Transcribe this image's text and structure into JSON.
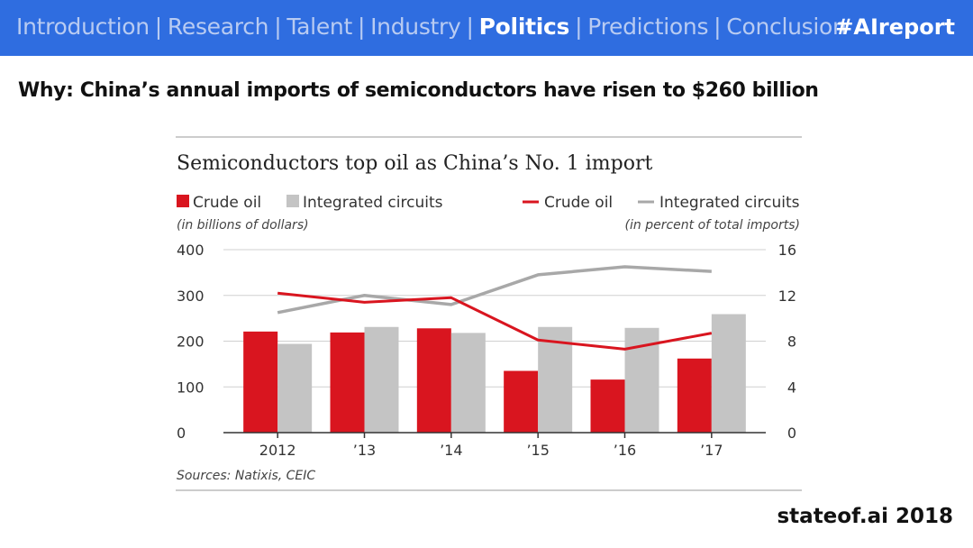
{
  "nav": {
    "items": [
      {
        "label": "Introduction",
        "active": false
      },
      {
        "label": "Research",
        "active": false
      },
      {
        "label": "Talent",
        "active": false
      },
      {
        "label": "Industry",
        "active": false
      },
      {
        "label": "Politics",
        "active": true
      },
      {
        "label": "Predictions",
        "active": false
      },
      {
        "label": "Conclusion",
        "active": false
      }
    ],
    "separator": "|",
    "hashtag": "#AIreport"
  },
  "headline": "Why: China’s annual imports of semiconductors have risen to $260 billion",
  "footer": "stateof.ai 2018",
  "colors": {
    "topbar": "#2f6de0",
    "crude": "#d9151f",
    "ic_bar": "#c4c4c4",
    "ic_line": "#a8a8a8"
  },
  "chart_data": {
    "type": "bar+line",
    "title": "Semiconductors top oil as China’s No. 1 import",
    "categories": [
      "2012",
      "’13",
      "’14",
      "’15",
      "’16",
      "’17"
    ],
    "bar_legend": [
      "Crude oil",
      "Integrated circuits"
    ],
    "bar_unit": "(in billions of dollars)",
    "line_legend": [
      "Crude oil",
      "Integrated circuits"
    ],
    "line_unit": "(in percent of total imports)",
    "bar_series": [
      {
        "name": "Crude oil",
        "values": [
          221,
          219,
          228,
          135,
          116,
          162
        ]
      },
      {
        "name": "Integrated circuits",
        "values": [
          194,
          231,
          218,
          231,
          229,
          259
        ]
      }
    ],
    "line_series": [
      {
        "name": "Crude oil",
        "values": [
          12.2,
          11.4,
          11.8,
          8.1,
          7.3,
          8.7
        ]
      },
      {
        "name": "Integrated circuits",
        "values": [
          10.5,
          12.0,
          11.2,
          13.8,
          14.5,
          14.1
        ]
      }
    ],
    "ylim_left": [
      0,
      400
    ],
    "yticks_left": [
      "400",
      "300",
      "200",
      "100",
      "0"
    ],
    "ylim_right": [
      0,
      16
    ],
    "yticks_right": [
      "16",
      "12",
      "8",
      "4",
      "0"
    ],
    "grid": true,
    "source": "Sources: Natixis, CEIC"
  }
}
